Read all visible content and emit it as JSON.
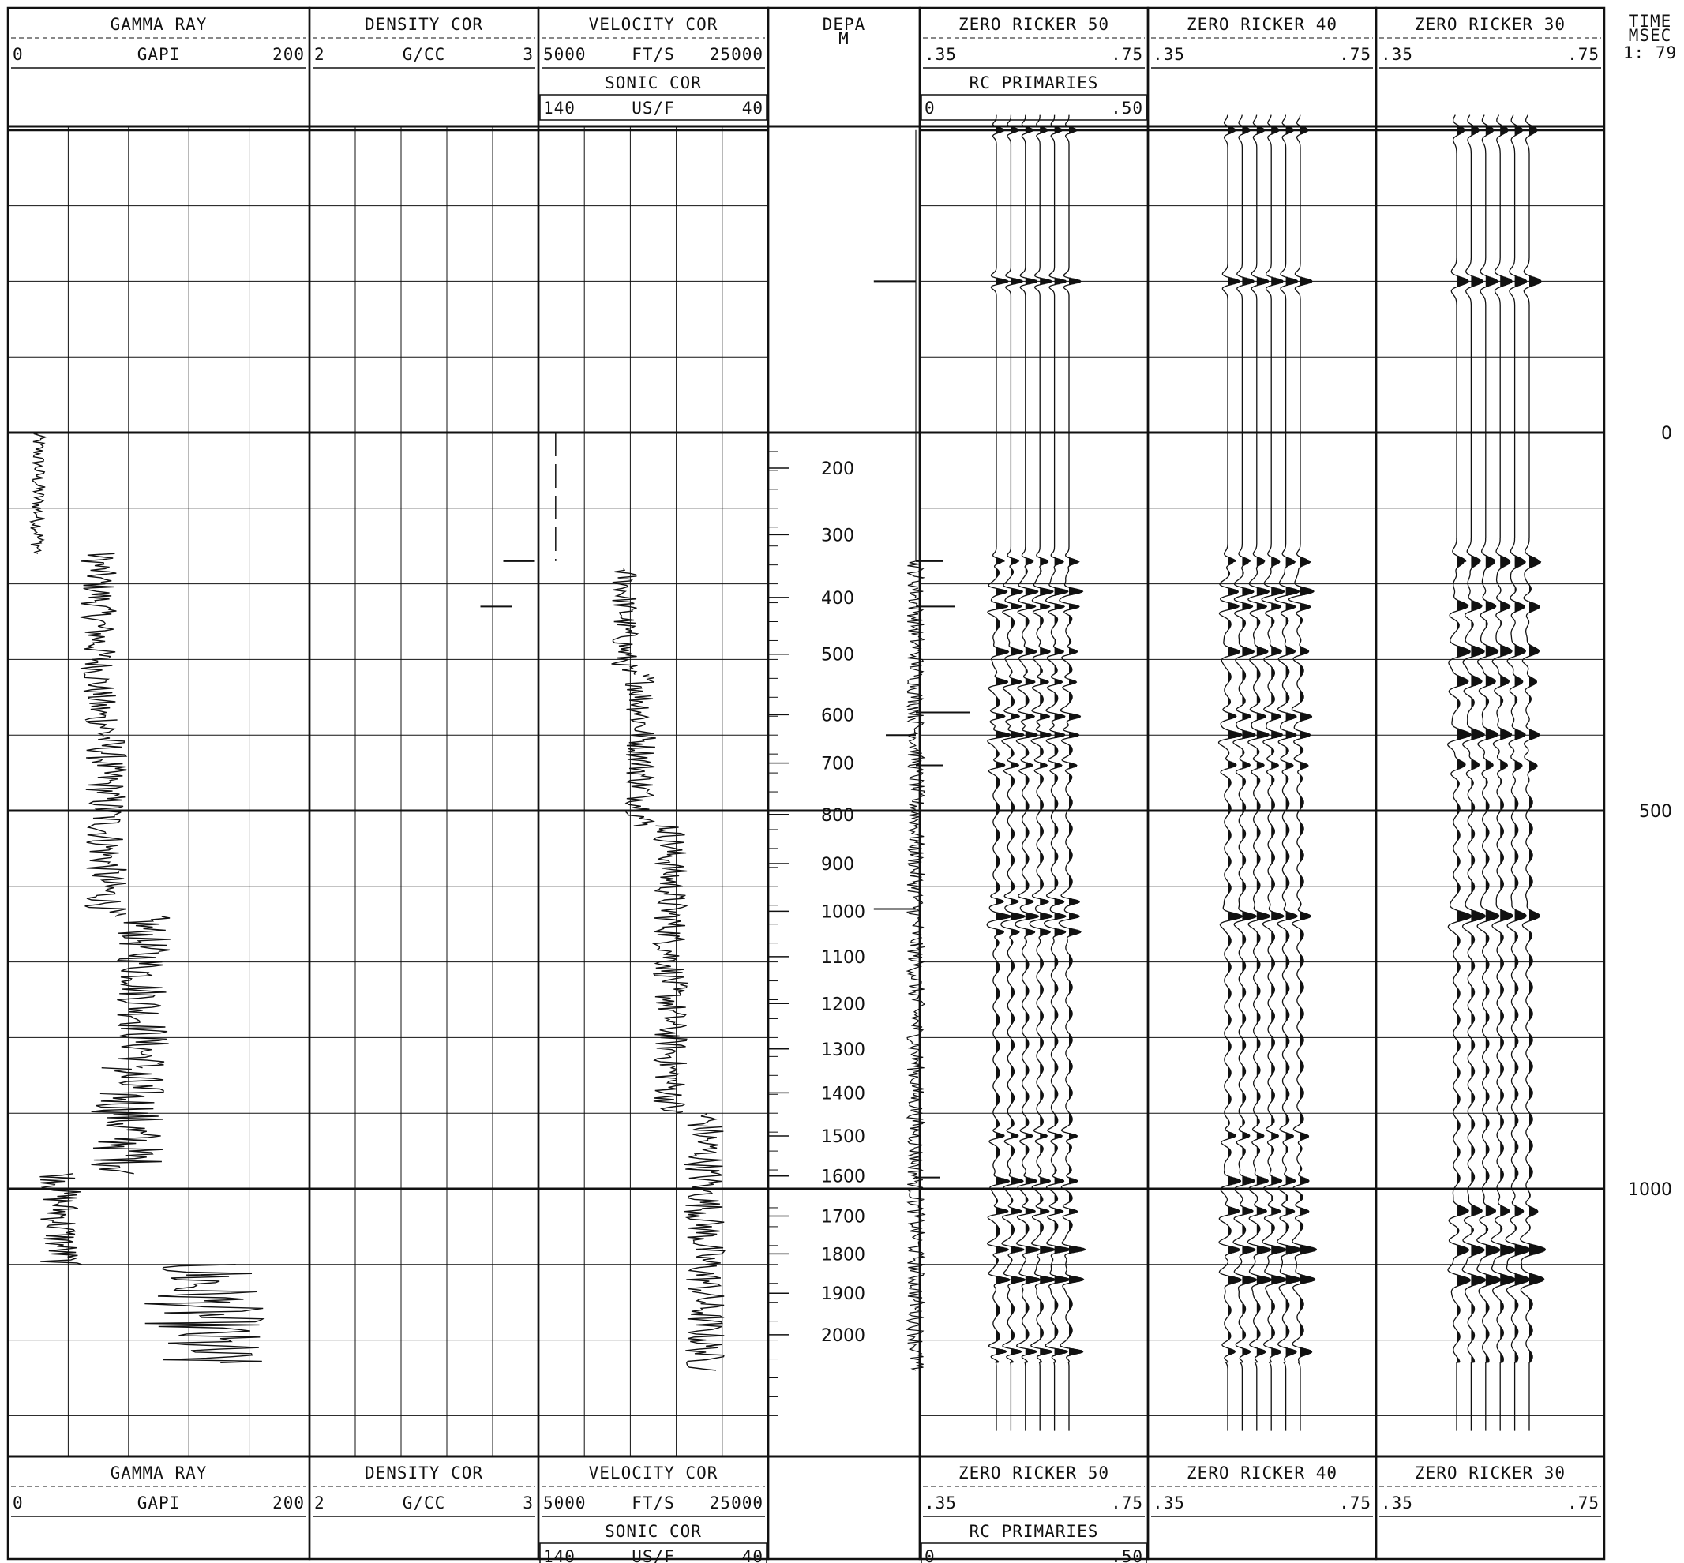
{
  "colors": {
    "ink": "#111111",
    "paper": "#ffffff",
    "grid": "#222222"
  },
  "tracks": [
    {
      "id": "gamma",
      "title": "GAMMA RAY",
      "unit": "GAPI",
      "left_value": "0",
      "right_value": "200",
      "second_title": "",
      "second_unit": "",
      "second_left": "",
      "second_right": ""
    },
    {
      "id": "density",
      "title": "DENSITY COR",
      "unit": "G/CC",
      "left_value": "2",
      "right_value": "3",
      "second_title": "",
      "second_unit": "",
      "second_left": "",
      "second_right": ""
    },
    {
      "id": "velocity",
      "title": "VELOCITY COR",
      "unit": "FT/S",
      "left_value": "5000",
      "right_value": "25000",
      "second_title": "SONIC COR",
      "second_unit": "US/F",
      "second_left": "140",
      "second_right": "40"
    },
    {
      "id": "depth",
      "title": "DEPA",
      "unit": "M",
      "left_value": "",
      "right_value": "",
      "second_title": "",
      "second_unit": "",
      "second_left": "",
      "second_right": ""
    },
    {
      "id": "ricker50",
      "title": "ZERO RICKER 50",
      "unit": "",
      "left_value": ".35",
      "right_value": ".75",
      "second_title": "RC PRIMARIES",
      "second_unit": "",
      "second_left": "0",
      "second_right": ".50"
    },
    {
      "id": "ricker40",
      "title": "ZERO RICKER 40",
      "unit": "",
      "left_value": ".35",
      "right_value": ".75",
      "second_title": "",
      "second_unit": "",
      "second_left": "",
      "second_right": ""
    },
    {
      "id": "ricker30",
      "title": "ZERO RICKER 30",
      "unit": "",
      "left_value": ".35",
      "right_value": ".75",
      "second_title": "",
      "second_unit": "",
      "second_left": "",
      "second_right": ""
    }
  ],
  "time_header": {
    "title": "TIME",
    "unit": "MSEC",
    "scale": "1: 79"
  },
  "chart_data": {
    "type": "line",
    "title": "",
    "depth_axis": {
      "label": "DEPA M",
      "ticks": [
        200,
        300,
        400,
        500,
        600,
        700,
        800,
        900,
        1000,
        1100,
        1200,
        1300,
        1400,
        1500,
        1600,
        1700,
        1800,
        1900,
        2000
      ],
      "tick_times_ms": [
        47,
        135,
        218,
        293,
        373,
        437,
        505,
        570,
        633,
        693,
        755,
        815,
        873,
        930,
        983,
        1036,
        1086,
        1138,
        1193
      ]
    },
    "time_axis": {
      "label": "TIME MSEC",
      "ticks": [
        0,
        500,
        1000
      ],
      "range_ms": [
        -400,
        1400
      ]
    },
    "gamma_ray": {
      "unit": "GAPI",
      "range": [
        0,
        200
      ],
      "segments": [
        {
          "t": [
            0,
            160
          ],
          "level": 20,
          "amp": 5
        },
        {
          "t": [
            160,
            380
          ],
          "level": 60,
          "amp": 12
        },
        {
          "t": [
            380,
            640
          ],
          "level": 65,
          "amp": 14
        },
        {
          "t": [
            640,
            840
          ],
          "level": 90,
          "amp": 18
        },
        {
          "t": [
            840,
            980
          ],
          "level": 80,
          "amp": 25
        },
        {
          "t": [
            980,
            1100
          ],
          "level": 35,
          "amp": 14
        },
        {
          "t": [
            1100,
            1230
          ],
          "level": 130,
          "amp": 40
        }
      ]
    },
    "density": {
      "unit": "G/CC",
      "range": [
        2,
        3
      ],
      "points_t": [
        170,
        230
      ],
      "points_v": [
        2.95,
        2.85
      ]
    },
    "velocity": {
      "unit": "FT/S",
      "range": [
        5000,
        25000
      ],
      "segments": [
        {
          "t": [
            180,
            320
          ],
          "level": 12500,
          "amp": 1200
        },
        {
          "t": [
            320,
            520
          ],
          "level": 14000,
          "amp": 1400
        },
        {
          "t": [
            520,
            900
          ],
          "level": 16500,
          "amp": 1500
        },
        {
          "t": [
            900,
            1240
          ],
          "level": 19500,
          "amp": 1800
        }
      ]
    },
    "rc_primaries": {
      "range": [
        0,
        0.5
      ],
      "spikes_ms": [
        -200,
        170,
        230,
        370,
        400,
        440,
        630,
        985
      ],
      "spikes_value": [
        -0.14,
        0.09,
        0.13,
        0.18,
        -0.1,
        0.09,
        -0.14,
        0.08
      ]
    },
    "synthetics": [
      {
        "name": "ZERO RICKER 50",
        "traces": 6,
        "events_ms": [
          -400,
          -200,
          170,
          210,
          230,
          290,
          330,
          375,
          400,
          440,
          620,
          640,
          660,
          930,
          990,
          1030,
          1080,
          1120,
          1215
        ],
        "amplitude": [
          0.6,
          0.9,
          0.6,
          0.8,
          1.0,
          0.7,
          0.8,
          0.9,
          1.0,
          0.8,
          0.8,
          0.9,
          0.7,
          0.8,
          0.8,
          0.9,
          1.0,
          0.9,
          1.0
        ]
      },
      {
        "name": "ZERO RICKER 40",
        "traces": 6,
        "events_ms": [
          -400,
          -200,
          170,
          210,
          230,
          290,
          375,
          400,
          440,
          640,
          930,
          990,
          1030,
          1080,
          1120,
          1215
        ],
        "amplitude": [
          0.6,
          0.9,
          0.6,
          0.8,
          1.0,
          0.7,
          0.9,
          1.0,
          0.8,
          0.9,
          0.8,
          0.8,
          0.9,
          1.0,
          0.9,
          0.8
        ]
      },
      {
        "name": "ZERO RICKER 30",
        "traces": 6,
        "events_ms": [
          -400,
          -200,
          170,
          230,
          290,
          330,
          400,
          440,
          640,
          1030,
          1080,
          1120
        ],
        "amplitude": [
          0.6,
          0.9,
          0.7,
          1.0,
          0.8,
          0.8,
          1.0,
          0.8,
          0.9,
          0.9,
          1.0,
          0.9
        ]
      }
    ]
  }
}
